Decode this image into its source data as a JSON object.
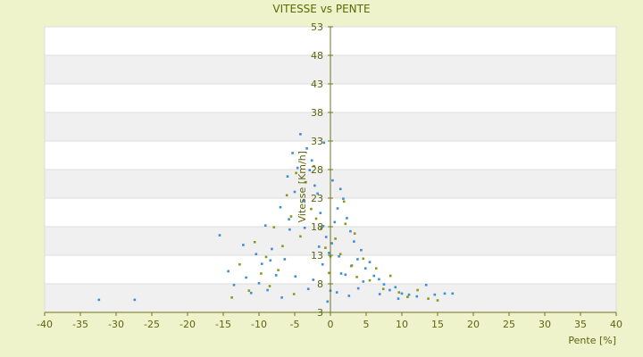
{
  "chart_data": {
    "type": "scatter",
    "title": "VITESSE vs PENTE",
    "xlabel": "Pente [%]",
    "ylabel": "Vitesse [Km/h]",
    "xlim": [
      -40,
      40
    ],
    "ylim": [
      3,
      53
    ],
    "x_ticks": [
      "-40",
      "-35",
      "-30",
      "-25",
      "-20",
      "-15",
      "-10",
      "-5",
      "0",
      "5",
      "10",
      "15",
      "20",
      "25",
      "30",
      "35",
      "40"
    ],
    "y_ticks": [
      "3",
      "8",
      "13",
      "18",
      "23",
      "28",
      "33",
      "38",
      "43",
      "48",
      "53"
    ],
    "grid": true,
    "legend": "none",
    "colors": {
      "series_1": "#3a8fd8",
      "series_2": "#8a9a18",
      "axis": "#6b7418",
      "band": "#f0f0f0"
    },
    "series": [
      {
        "x": [
          -32.4,
          -27.4,
          -15.5,
          -14.3,
          -13.5,
          -12.2,
          -11.8,
          -11.1,
          -10.4,
          -10.0,
          -9.6,
          -9.1,
          -8.8,
          -8.2,
          -7.6,
          -7.0,
          -6.4,
          -6.0,
          -5.7,
          -5.3,
          -5.0,
          -4.6,
          -4.2,
          -3.8,
          -3.3,
          -2.9,
          -2.6,
          -2.2,
          -1.8,
          -1.4,
          -1.0,
          -0.6,
          -0.2,
          0.2,
          0.6,
          1.0,
          1.4,
          1.8,
          2.3,
          2.8,
          3.3,
          3.8,
          4.3,
          4.9,
          5.5,
          6.1,
          6.8,
          7.5,
          8.3,
          9.1,
          10.0,
          11.0,
          12.1,
          13.4,
          14.6,
          16.0,
          17.1,
          -4.9,
          -3.1,
          -1.1,
          0.9,
          2.6,
          -6.8,
          -2.4,
          1.5,
          3.9,
          -0.4,
          0.3,
          -1.6,
          1.2,
          4.6,
          6.9,
          9.5,
          -8.4,
          -5.8,
          2.1,
          3.0,
          -3.6,
          0.0,
          -0.9
        ],
        "y": [
          5.2,
          5.2,
          16.5,
          10.2,
          7.8,
          14.8,
          9.1,
          6.4,
          13.2,
          8.1,
          11.5,
          18.2,
          6.9,
          14.1,
          9.5,
          21.4,
          12.3,
          26.8,
          17.5,
          30.9,
          24.1,
          28.3,
          34.2,
          22.5,
          31.7,
          27.9,
          29.6,
          25.2,
          23.8,
          20.4,
          18.1,
          16.2,
          13.4,
          15.1,
          18.8,
          21.2,
          24.6,
          22.9,
          19.5,
          17.2,
          15.4,
          12.3,
          13.9,
          10.7,
          11.8,
          9.4,
          8.8,
          7.9,
          6.9,
          7.4,
          6.3,
          6.1,
          5.8,
          7.8,
          6.1,
          6.3,
          6.3,
          9.3,
          7.1,
          11.4,
          6.5,
          5.9,
          5.6,
          8.7,
          9.8,
          7.2,
          4.9,
          26.1,
          14.5,
          12.8,
          8.4,
          6.2,
          5.4,
          12.1,
          19.3,
          9.6,
          11.2,
          17.8,
          6.8,
          32.7
        ]
      },
      {
        "x": [
          -13.8,
          -12.7,
          -11.4,
          -10.6,
          -9.7,
          -9.0,
          -8.5,
          -7.9,
          -7.3,
          -6.7,
          -6.1,
          -5.5,
          -4.8,
          -4.2,
          -3.5,
          -2.7,
          -2.0,
          -1.3,
          -0.7,
          0.0,
          0.7,
          1.4,
          2.1,
          2.9,
          3.7,
          4.6,
          5.5,
          6.4,
          7.4,
          8.4,
          9.6,
          10.8,
          12.2,
          13.7,
          15.0,
          -2.3,
          1.9,
          -5.1,
          3.4,
          -0.2
        ],
        "y": [
          5.6,
          11.4,
          6.8,
          15.3,
          9.8,
          12.7,
          7.6,
          17.9,
          10.4,
          14.6,
          23.5,
          19.8,
          27.4,
          16.3,
          25.8,
          21.1,
          19.4,
          17.7,
          14.3,
          12.8,
          15.9,
          13.2,
          18.5,
          11.1,
          9.2,
          12.4,
          8.6,
          10.7,
          7.1,
          9.4,
          6.5,
          5.7,
          6.9,
          5.4,
          5.1,
          28.6,
          22.4,
          6.2,
          16.8,
          9.9
        ]
      }
    ]
  }
}
